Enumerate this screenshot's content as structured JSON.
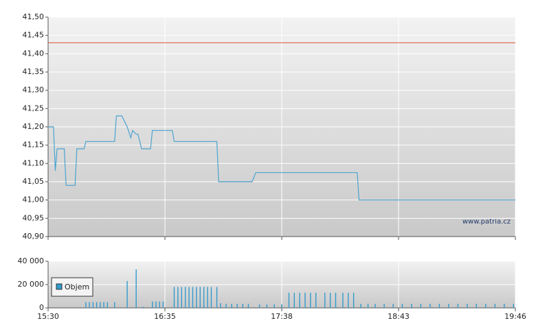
{
  "chart_data": [
    {
      "type": "line",
      "x": [
        "15:30",
        "15:33",
        "15:34",
        "15:35",
        "15:39",
        "15:40",
        "15:45",
        "15:46",
        "15:50",
        "15:51",
        "16:07",
        "16:08",
        "16:11",
        "16:14",
        "16:16",
        "16:17",
        "16:19",
        "16:20",
        "16:22",
        "16:27",
        "16:28",
        "16:39",
        "16:40",
        "17:03",
        "17:04",
        "17:22",
        "17:24",
        "18:20",
        "18:21",
        "19:46"
      ],
      "series": [
        {
          "color": "#4aa3d0",
          "values": [
            41.2,
            41.2,
            41.08,
            41.14,
            41.14,
            41.04,
            41.04,
            41.14,
            41.14,
            41.16,
            41.16,
            41.23,
            41.23,
            41.2,
            41.17,
            41.19,
            41.18,
            41.18,
            41.14,
            41.14,
            41.19,
            41.19,
            41.16,
            41.16,
            41.05,
            41.05,
            41.075,
            41.075,
            41.0,
            41.0
          ]
        }
      ],
      "reference_line": 41.43,
      "reference_color": "#e0503a",
      "ylim": [
        40.9,
        41.5
      ],
      "yticks": [
        {
          "value": 40.9,
          "label": "40,90"
        },
        {
          "value": 40.95,
          "label": "40,95"
        },
        {
          "value": 41.0,
          "label": "41,00"
        },
        {
          "value": 41.05,
          "label": "41,05"
        },
        {
          "value": 41.1,
          "label": "41,10"
        },
        {
          "value": 41.15,
          "label": "41,15"
        },
        {
          "value": 41.2,
          "label": "41,20"
        },
        {
          "value": 41.25,
          "label": "41,25"
        },
        {
          "value": 41.3,
          "label": "41,30"
        },
        {
          "value": 41.35,
          "label": "41,35"
        },
        {
          "value": 41.4,
          "label": "41,40"
        },
        {
          "value": 41.45,
          "label": "41,45"
        },
        {
          "value": 41.5,
          "label": "41,50"
        }
      ],
      "grid": true,
      "watermark": "www.patria.cz"
    },
    {
      "type": "bar",
      "x": [
        "15:51",
        "15:53",
        "15:55",
        "15:57",
        "15:59",
        "16:01",
        "16:03",
        "16:07",
        "16:14",
        "16:19",
        "16:23",
        "16:28",
        "16:30",
        "16:32",
        "16:34",
        "16:40",
        "16:42",
        "16:44",
        "16:46",
        "16:48",
        "16:50",
        "16:52",
        "16:54",
        "16:56",
        "16:58",
        "17:00",
        "17:03",
        "17:05",
        "17:08",
        "17:11",
        "17:14",
        "17:17",
        "17:20",
        "17:26",
        "17:30",
        "17:34",
        "17:38",
        "17:42",
        "17:45",
        "17:48",
        "17:51",
        "17:54",
        "17:57",
        "18:02",
        "18:05",
        "18:08",
        "18:12",
        "18:15",
        "18:18",
        "18:22",
        "18:26",
        "18:30",
        "18:35",
        "18:40",
        "18:45",
        "18:50",
        "18:55",
        "19:00",
        "19:05",
        "19:10",
        "19:15",
        "19:20",
        "19:25",
        "19:30",
        "19:35",
        "19:40",
        "19:45"
      ],
      "series": [
        {
          "name": "Objem",
          "color": "#3399cc",
          "values": [
            5000,
            5000,
            5000,
            5000,
            5000,
            5000,
            5000,
            5000,
            23000,
            33000,
            1000,
            5500,
            5500,
            5500,
            5500,
            18000,
            18000,
            18000,
            18000,
            18000,
            18000,
            18000,
            18000,
            18000,
            18000,
            18000,
            18000,
            4000,
            3500,
            3500,
            3500,
            3500,
            3500,
            3000,
            3000,
            3000,
            3000,
            13000,
            13000,
            13000,
            13000,
            13000,
            13000,
            13000,
            13000,
            13000,
            13000,
            13000,
            13000,
            3500,
            3500,
            3500,
            3500,
            3500,
            3500,
            3500,
            3500,
            3500,
            3500,
            3500,
            3500,
            3500,
            3500,
            3500,
            3500,
            3500,
            3500
          ]
        }
      ],
      "ylim": [
        0,
        40000
      ],
      "yticks": [
        {
          "value": 0,
          "label": "0"
        },
        {
          "value": 20000,
          "label": "20 000"
        },
        {
          "value": 40000,
          "label": "40 000"
        }
      ],
      "xlim": [
        "15:30",
        "19:46"
      ],
      "xticks": [
        "15:30",
        "16:35",
        "17:38",
        "18:43",
        "19:46"
      ],
      "grid": true,
      "legend": "top-left"
    }
  ]
}
